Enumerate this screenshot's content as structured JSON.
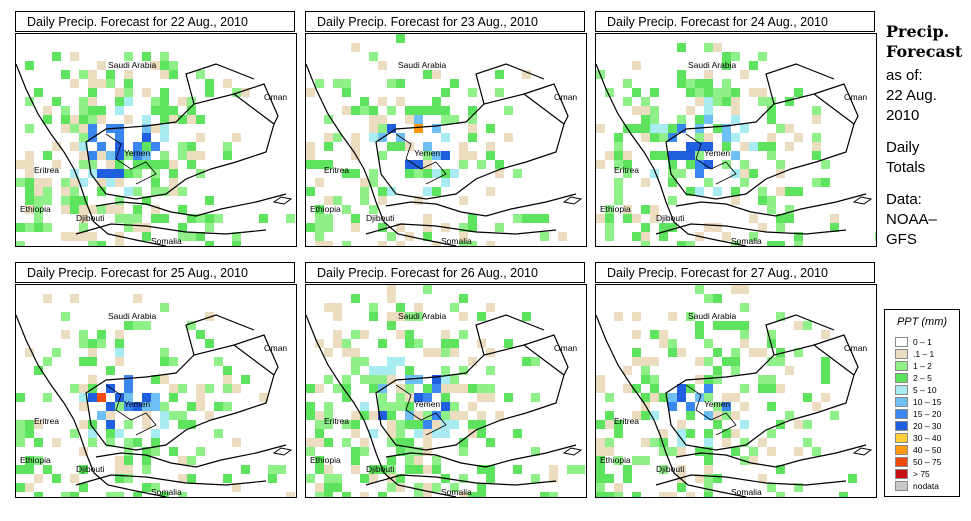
{
  "panels": [
    {
      "title": "Daily Precip. Forecast for  22 Aug., 2010",
      "seed": 11,
      "intensity": 1.0
    },
    {
      "title": "Daily Precip. Forecast for  23 Aug., 2010",
      "seed": 23,
      "intensity": 0.7
    },
    {
      "title": "Daily Precip. Forecast for  24 Aug., 2010",
      "seed": 37,
      "intensity": 0.9
    },
    {
      "title": "Daily Precip. Forecast for  25 Aug., 2010",
      "seed": 41,
      "intensity": 0.85
    },
    {
      "title": "Daily Precip. Forecast for  26 Aug., 2010",
      "seed": 53,
      "intensity": 1.1
    },
    {
      "title": "Daily Precip. Forecast for  27 Aug., 2010",
      "seed": 67,
      "intensity": 0.8
    }
  ],
  "map_labels": {
    "saudi": "Saudi Arabia",
    "oman": "Oman",
    "yemen": "Yemen",
    "eritrea": "Eritrea",
    "ethiopia": "Ethiopia",
    "djibouti": "Djibouti",
    "somalia": "Somalia"
  },
  "sidebar": {
    "title_line1": "Precip.",
    "title_line2": "Forecast",
    "asof_line1": "as of:",
    "asof_line2": "22 Aug.",
    "asof_line3": "2010",
    "daily_line1": "Daily",
    "daily_line2": "Totals",
    "data_line1": "Data:",
    "data_line2": "NOAA–",
    "data_line3": "GFS"
  },
  "legend": {
    "title": "PPT (mm)",
    "items": [
      {
        "label": "0 – 1",
        "color": "#ffffff"
      },
      {
        "label": ".1 – 1",
        "color": "#ecdcc0"
      },
      {
        "label": "1 – 2",
        "color": "#8ff08a"
      },
      {
        "label": "2 – 5",
        "color": "#5de35d"
      },
      {
        "label": "5 – 10",
        "color": "#a8ecf2"
      },
      {
        "label": "10 – 15",
        "color": "#6ec0f4"
      },
      {
        "label": "15 – 20",
        "color": "#3b87f0"
      },
      {
        "label": "20 – 30",
        "color": "#1f5fe0"
      },
      {
        "label": "30 – 40",
        "color": "#ffd23a"
      },
      {
        "label": "40 – 50",
        "color": "#ff9a10"
      },
      {
        "label": "50 – 75",
        "color": "#f04a0a"
      },
      {
        "label": "> 75",
        "color": "#c81010"
      },
      {
        "label": "nodata",
        "color": "#c8c8c8"
      }
    ]
  }
}
